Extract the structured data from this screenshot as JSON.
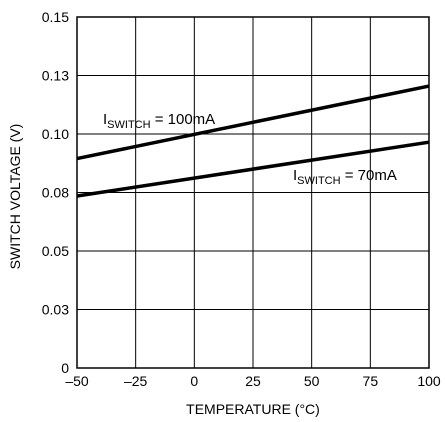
{
  "chart_data": {
    "type": "line",
    "title": "",
    "xlabel": "TEMPERATURE (°C)",
    "ylabel": "SWITCH VOLTAGE (V)",
    "xlim": [
      -50,
      100
    ],
    "ylim": [
      0,
      0.15
    ],
    "x_ticks": [
      -50,
      -25,
      0,
      25,
      50,
      75,
      100
    ],
    "x_tick_labels": [
      "–50",
      "–25",
      "0",
      "25",
      "50",
      "75",
      "100"
    ],
    "y_ticks": [
      0,
      0.025,
      0.05,
      0.075,
      0.1,
      0.125,
      0.15
    ],
    "y_tick_labels": [
      "0",
      "0.03",
      "0.05",
      "0.08",
      "0.10",
      "0.13",
      "0.15"
    ],
    "grid": true,
    "legend": "none",
    "series": [
      {
        "x": [
          -50,
          100
        ],
        "y": [
          0.0895,
          0.1205
        ],
        "annotation": {
          "main": "I",
          "sub": "SWITCH",
          "rest": " = 100mA"
        }
      },
      {
        "x": [
          -50,
          100
        ],
        "y": [
          0.0735,
          0.0965
        ],
        "annotation": {
          "main": "I",
          "sub": "SWITCH",
          "rest": " = 70mA"
        }
      }
    ]
  }
}
